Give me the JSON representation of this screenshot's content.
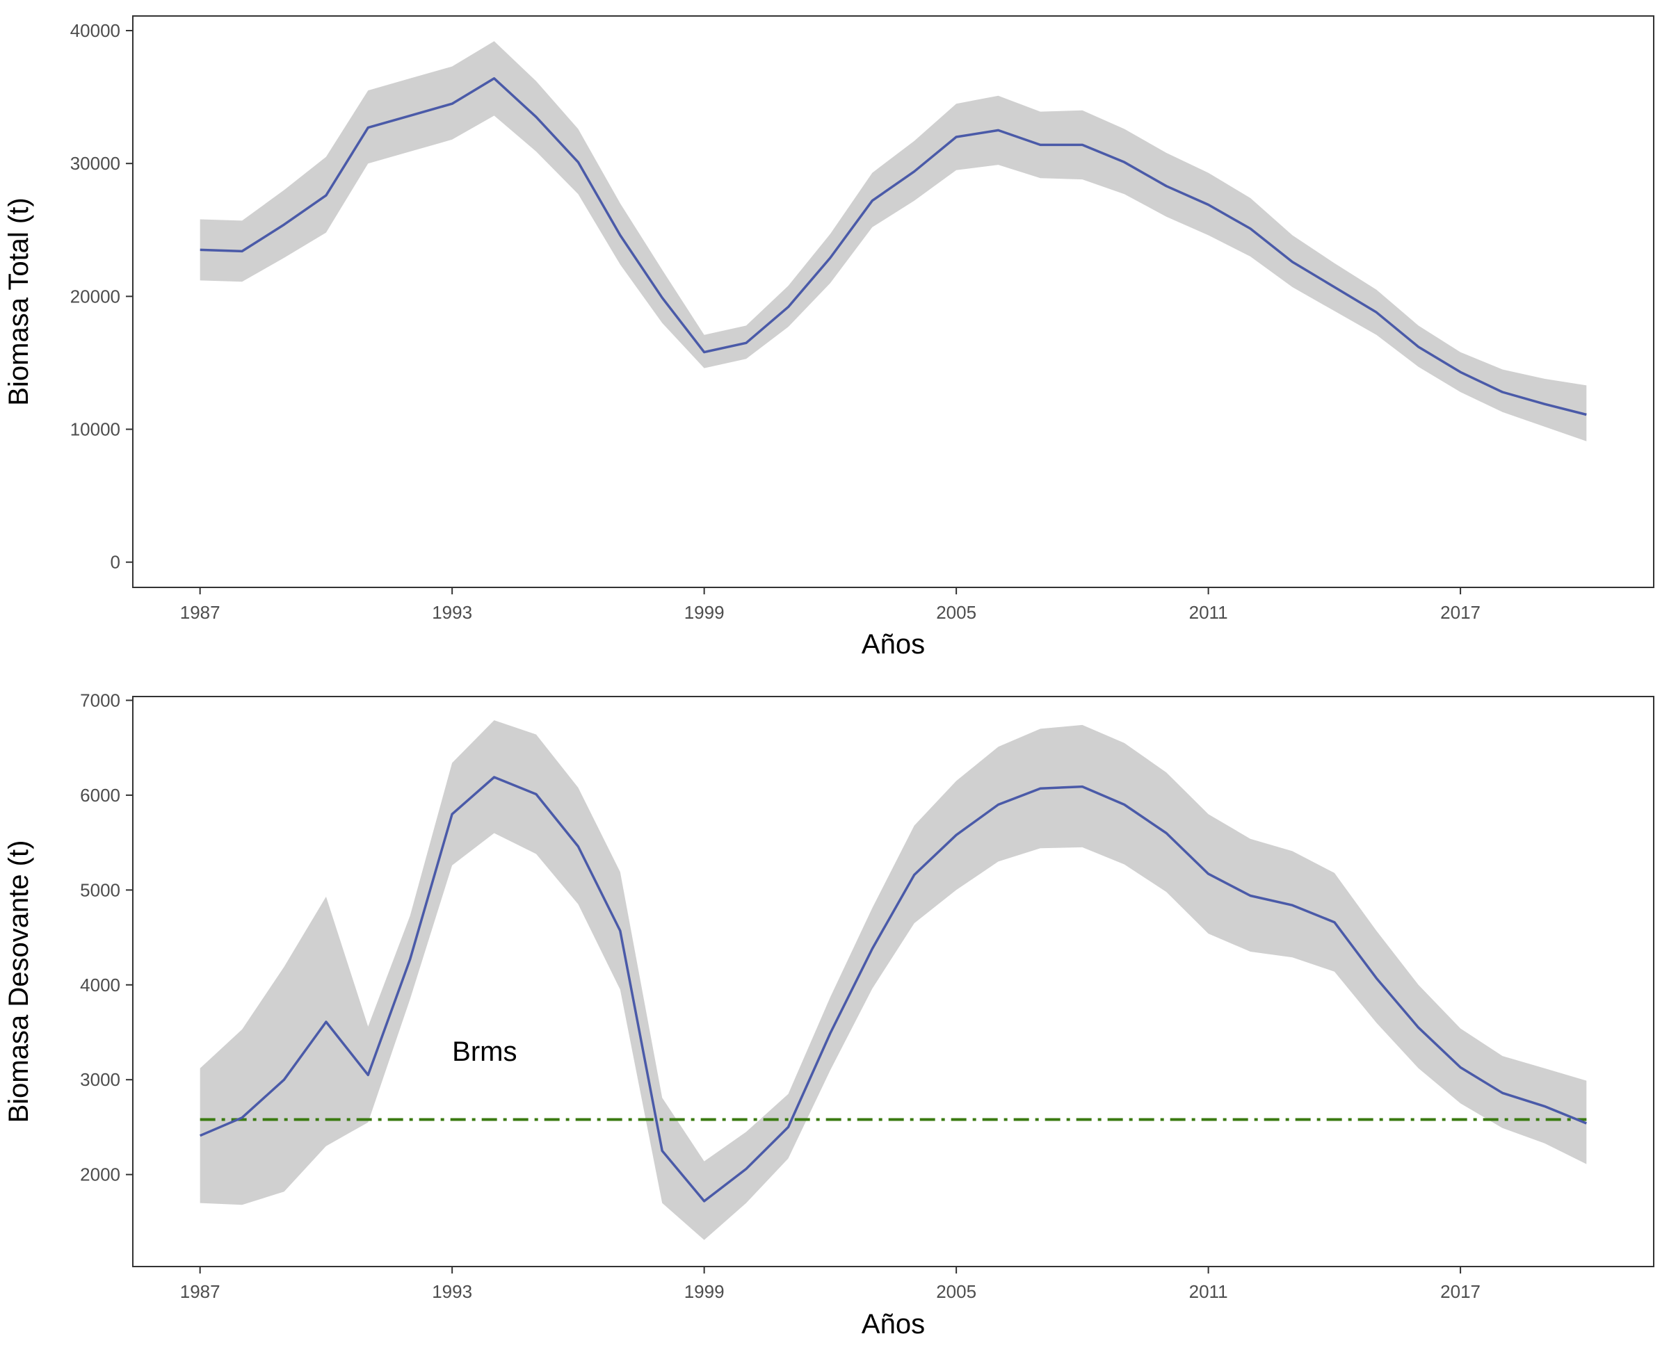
{
  "colors": {
    "line": "#4a5aa8",
    "band": "#d0d0d0",
    "reference": "#3a7a10",
    "panel_border": "#333333"
  },
  "chart_data": [
    {
      "type": "line",
      "title": "",
      "xlabel": "Años",
      "ylabel": "Biomasa Total (t)",
      "xlim": [
        1985.4,
        2021.6
      ],
      "ylim": [
        -1900,
        41100
      ],
      "x_ticks": [
        1987,
        1993,
        1999,
        2005,
        2011,
        2017
      ],
      "x_tick_labels": [
        "1987",
        "1993",
        "1999",
        "2005",
        "2011",
        "2017"
      ],
      "y_ticks": [
        0,
        10000,
        20000,
        30000,
        40000
      ],
      "y_tick_labels": [
        "0",
        "10000",
        "20000",
        "30000",
        "40000"
      ],
      "grid": false,
      "x": [
        1987,
        1988,
        1989,
        1990,
        1991,
        1992,
        1993,
        1994,
        1995,
        1996,
        1997,
        1998,
        1999,
        2000,
        2001,
        2002,
        2003,
        2004,
        2005,
        2006,
        2007,
        2008,
        2009,
        2010,
        2011,
        2012,
        2013,
        2014,
        2015,
        2016,
        2017,
        2018,
        2019,
        2020
      ],
      "series": [
        {
          "values": [
            23500,
            23400,
            25400,
            27600,
            32700,
            33600,
            34500,
            36400,
            33500,
            30100,
            24600,
            19900,
            15800,
            16500,
            19200,
            22900,
            27200,
            29400,
            32000,
            32500,
            31400,
            31400,
            30100,
            28300,
            26900,
            25100,
            22600,
            20700,
            18800,
            16200,
            14300,
            12800,
            11900,
            11100
          ],
          "lower": [
            21200,
            21100,
            22900,
            24800,
            30000,
            30900,
            31800,
            33600,
            30900,
            27700,
            22400,
            18000,
            14600,
            15300,
            17700,
            21000,
            25200,
            27200,
            29500,
            29900,
            28900,
            28800,
            27700,
            26000,
            24600,
            23000,
            20700,
            18900,
            17100,
            14700,
            12800,
            11300,
            10200,
            9100
          ],
          "upper": [
            25800,
            25700,
            28000,
            30500,
            35500,
            36400,
            37300,
            39200,
            36200,
            32600,
            27000,
            22000,
            17100,
            17800,
            20800,
            24700,
            29300,
            31700,
            34500,
            35100,
            33900,
            34000,
            32600,
            30800,
            29300,
            27400,
            24600,
            22500,
            20500,
            17800,
            15800,
            14500,
            13800,
            13300
          ]
        }
      ]
    },
    {
      "type": "line",
      "title": "",
      "xlabel": "Años",
      "ylabel": "Biomasa Desovante (t)",
      "xlim": [
        1985.4,
        2021.6
      ],
      "ylim": [
        1030,
        7040
      ],
      "x_ticks": [
        1987,
        1993,
        1999,
        2005,
        2011,
        2017
      ],
      "x_tick_labels": [
        "1987",
        "1993",
        "1999",
        "2005",
        "2011",
        "2017"
      ],
      "y_ticks": [
        2000,
        3000,
        4000,
        5000,
        6000,
        7000
      ],
      "y_tick_labels": [
        "2000",
        "3000",
        "4000",
        "5000",
        "6000",
        "7000"
      ],
      "grid": false,
      "x": [
        1987,
        1988,
        1989,
        1990,
        1991,
        1992,
        1993,
        1994,
        1995,
        1996,
        1997,
        1998,
        1999,
        2000,
        2001,
        2002,
        2003,
        2004,
        2005,
        2006,
        2007,
        2008,
        2009,
        2010,
        2011,
        2012,
        2013,
        2014,
        2015,
        2016,
        2017,
        2018,
        2019,
        2020
      ],
      "series": [
        {
          "values": [
            2410,
            2600,
            3000,
            3610,
            3050,
            4270,
            5800,
            6190,
            6010,
            5460,
            4570,
            2250,
            1720,
            2060,
            2500,
            3490,
            4380,
            5160,
            5580,
            5900,
            6070,
            6090,
            5900,
            5600,
            5170,
            4940,
            4840,
            4660,
            4070,
            3550,
            3130,
            2860,
            2720,
            2540
          ],
          "lower": [
            1700,
            1680,
            1820,
            2300,
            2550,
            3850,
            5260,
            5600,
            5380,
            4850,
            3950,
            1700,
            1310,
            1700,
            2170,
            3100,
            3960,
            4650,
            5000,
            5300,
            5440,
            5450,
            5270,
            4980,
            4540,
            4350,
            4290,
            4140,
            3600,
            3120,
            2750,
            2490,
            2330,
            2110
          ],
          "upper": [
            3120,
            3530,
            4190,
            4930,
            3560,
            4730,
            6340,
            6790,
            6640,
            6080,
            5190,
            2810,
            2140,
            2450,
            2850,
            3870,
            4810,
            5680,
            6150,
            6510,
            6700,
            6740,
            6550,
            6240,
            5800,
            5540,
            5410,
            5180,
            4570,
            4000,
            3540,
            3250,
            3120,
            2990
          ]
        }
      ],
      "reference_line": {
        "value": 2580,
        "x_range": [
          1987,
          2020
        ],
        "style": "dash-dot"
      },
      "annotation": {
        "text": "Brms",
        "x": 1993,
        "y": 3200
      }
    }
  ]
}
